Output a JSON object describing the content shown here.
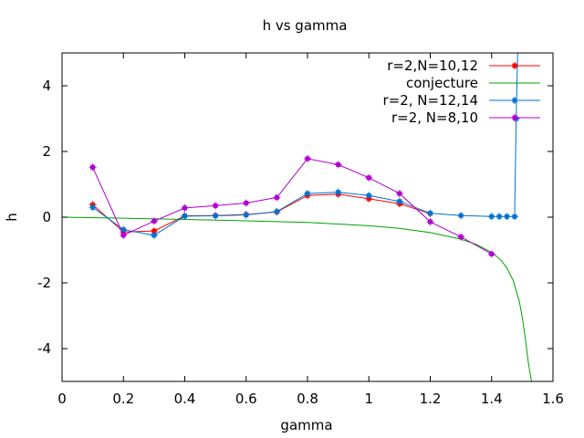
{
  "chart_data": {
    "type": "line",
    "title": "h vs gamma",
    "xlabel": "gamma",
    "ylabel": "h",
    "xlim": [
      0,
      1.6
    ],
    "ylim": [
      -5,
      5
    ],
    "xticks": [
      0,
      0.2,
      0.4,
      0.6,
      0.8,
      1,
      1.2,
      1.4,
      1.6
    ],
    "xtick_labels": [
      "0",
      "0.2",
      "0.4",
      "0.6",
      "0.8",
      "1",
      "1.2",
      "1.4",
      "1.6"
    ],
    "yticks": [
      -4,
      -2,
      0,
      2,
      4
    ],
    "ytick_labels": [
      "-4",
      "-2",
      "0",
      "2",
      "4"
    ],
    "grid": false,
    "legend_position": "top-right",
    "series": [
      {
        "name": "r=2,N=10,12",
        "color": "#ff0000",
        "markers": true,
        "x": [
          0.1,
          0.2,
          0.3,
          0.4,
          0.5,
          0.6,
          0.7,
          0.8,
          0.9,
          1.0,
          1.1,
          1.2
        ],
        "y": [
          0.38,
          -0.45,
          -0.42,
          0.04,
          0.05,
          0.08,
          0.16,
          0.66,
          0.7,
          0.56,
          0.41,
          0.11
        ]
      },
      {
        "name": "conjecture",
        "color": "#00a000",
        "markers": false,
        "x": [
          0.0,
          0.2,
          0.4,
          0.6,
          0.8,
          1.0,
          1.1,
          1.2,
          1.3,
          1.35,
          1.4,
          1.43,
          1.45,
          1.47,
          1.49,
          1.5,
          1.51,
          1.52,
          1.53
        ],
        "y": [
          0.0,
          -0.03,
          -0.07,
          -0.11,
          -0.16,
          -0.26,
          -0.34,
          -0.47,
          -0.67,
          -0.83,
          -1.07,
          -1.3,
          -1.55,
          -1.92,
          -2.55,
          -3.05,
          -3.7,
          -4.45,
          -5.0
        ]
      },
      {
        "name": "r=2, N=12,14",
        "color": "#0072d0",
        "markers": true,
        "x": [
          0.1,
          0.2,
          0.3,
          0.4,
          0.5,
          0.6,
          0.7,
          0.8,
          0.9,
          1.0,
          1.1,
          1.2,
          1.3,
          1.4,
          1.425,
          1.45,
          1.475,
          1.48,
          1.485
        ],
        "y": [
          0.3,
          -0.38,
          -0.55,
          0.03,
          0.04,
          0.07,
          0.17,
          0.72,
          0.76,
          0.66,
          0.48,
          0.12,
          0.05,
          0.02,
          0.02,
          0.02,
          0.02,
          3.0,
          5.0
        ]
      },
      {
        "name": "r=2, N=8,10",
        "color": "#b000d0",
        "markers": true,
        "x": [
          0.1,
          0.2,
          0.3,
          0.4,
          0.5,
          0.6,
          0.7,
          0.8,
          0.9,
          1.0,
          1.1,
          1.2,
          1.3,
          1.4
        ],
        "y": [
          1.52,
          -0.55,
          -0.12,
          0.28,
          0.35,
          0.43,
          0.6,
          1.78,
          1.6,
          1.2,
          0.72,
          -0.14,
          -0.6,
          -1.12
        ]
      }
    ]
  }
}
